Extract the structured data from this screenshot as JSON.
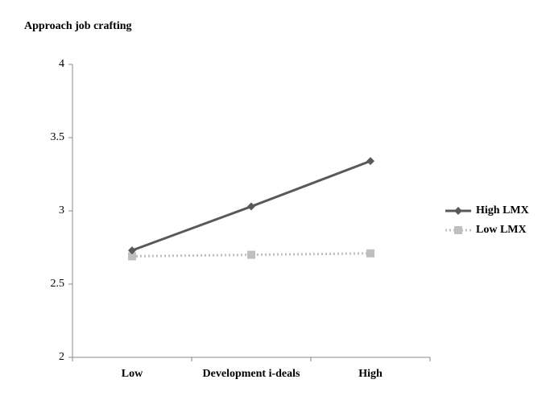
{
  "chart_data": {
    "type": "line",
    "title": "Approach job crafting",
    "categories": [
      "Low",
      "Development i-deals",
      "High"
    ],
    "series": [
      {
        "name": "High LMX",
        "color": "#595959",
        "marker": "diamond",
        "line_style": "solid",
        "values": [
          2.73,
          3.03,
          3.34
        ]
      },
      {
        "name": "Low LMX",
        "color": "#bfbfbf",
        "marker": "square",
        "line_style": "dotted",
        "values": [
          2.69,
          2.7,
          2.71
        ]
      }
    ],
    "ylim": [
      2,
      4
    ],
    "yticks": [
      2,
      2.5,
      3,
      3.5,
      4
    ],
    "grid": false,
    "legend": "right"
  }
}
